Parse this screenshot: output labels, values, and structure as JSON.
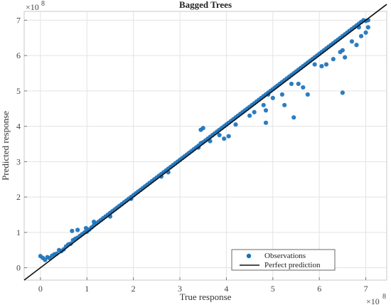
{
  "chart_data": {
    "type": "scatter",
    "title": "Bagged Trees",
    "xlabel": "True response",
    "ylabel": "Predicted response",
    "x_multiplier_label": "×10",
    "x_multiplier_exp": "8",
    "y_multiplier_label": "×10",
    "y_multiplier_exp": "8",
    "xlim": [
      -0.35,
      7.45
    ],
    "ylim": [
      -0.35,
      7.25
    ],
    "x_ticks": [
      "0",
      "1",
      "2",
      "3",
      "4",
      "5",
      "6",
      "7"
    ],
    "y_ticks": [
      "0",
      "1",
      "2",
      "3",
      "4",
      "5",
      "6",
      "7"
    ],
    "grid": true,
    "legend_position": "bottom-right",
    "colors": {
      "observations": "#1a72bb",
      "perfect_prediction": "#111111",
      "grid": "#e3e3e3",
      "axes": "#c8c8c8"
    },
    "series": [
      {
        "name": "Observations",
        "kind": "scatter",
        "points": [
          [
            0.0,
            0.33
          ],
          [
            0.05,
            0.28
          ],
          [
            0.1,
            0.22
          ],
          [
            0.15,
            0.3
          ],
          [
            0.2,
            0.27
          ],
          [
            0.25,
            0.34
          ],
          [
            0.3,
            0.38
          ],
          [
            0.35,
            0.4
          ],
          [
            0.4,
            0.5
          ],
          [
            0.45,
            0.47
          ],
          [
            0.5,
            0.52
          ],
          [
            0.55,
            0.6
          ],
          [
            0.6,
            0.66
          ],
          [
            0.65,
            0.68
          ],
          [
            0.7,
            0.78
          ],
          [
            0.75,
            0.82
          ],
          [
            0.8,
            0.85
          ],
          [
            0.85,
            0.9
          ],
          [
            0.9,
            0.95
          ],
          [
            0.95,
            1.0
          ],
          [
            0.68,
            1.04
          ],
          [
            0.8,
            1.07
          ],
          [
            0.98,
            1.12
          ],
          [
            1.0,
            1.02
          ],
          [
            1.05,
            1.08
          ],
          [
            1.1,
            1.14
          ],
          [
            1.15,
            1.2
          ],
          [
            1.2,
            1.25
          ],
          [
            1.25,
            1.3
          ],
          [
            1.3,
            1.35
          ],
          [
            1.35,
            1.4
          ],
          [
            1.4,
            1.45
          ],
          [
            1.45,
            1.5
          ],
          [
            1.5,
            1.55
          ],
          [
            1.55,
            1.6
          ],
          [
            1.6,
            1.65
          ],
          [
            1.65,
            1.7
          ],
          [
            1.7,
            1.75
          ],
          [
            1.75,
            1.8
          ],
          [
            1.8,
            1.85
          ],
          [
            1.85,
            1.9
          ],
          [
            1.9,
            1.95
          ],
          [
            1.95,
            2.0
          ],
          [
            2.0,
            2.05
          ],
          [
            2.05,
            2.1
          ],
          [
            2.1,
            2.15
          ],
          [
            2.15,
            2.2
          ],
          [
            2.2,
            2.25
          ],
          [
            2.25,
            2.3
          ],
          [
            2.3,
            2.35
          ],
          [
            2.35,
            2.4
          ],
          [
            2.4,
            2.45
          ],
          [
            2.45,
            2.5
          ],
          [
            2.5,
            2.55
          ],
          [
            2.55,
            2.6
          ],
          [
            2.6,
            2.65
          ],
          [
            2.65,
            2.7
          ],
          [
            2.7,
            2.75
          ],
          [
            2.75,
            2.8
          ],
          [
            2.8,
            2.85
          ],
          [
            2.85,
            2.9
          ],
          [
            2.9,
            2.95
          ],
          [
            2.95,
            3.0
          ],
          [
            3.0,
            3.05
          ],
          [
            3.05,
            3.1
          ],
          [
            3.1,
            3.15
          ],
          [
            3.15,
            3.2
          ],
          [
            3.2,
            3.25
          ],
          [
            3.25,
            3.3
          ],
          [
            3.3,
            3.35
          ],
          [
            3.35,
            3.4
          ],
          [
            3.4,
            3.45
          ],
          [
            3.45,
            3.52
          ],
          [
            3.5,
            3.55
          ],
          [
            3.55,
            3.6
          ],
          [
            3.6,
            3.65
          ],
          [
            3.65,
            3.7
          ],
          [
            3.7,
            3.75
          ],
          [
            3.75,
            3.8
          ],
          [
            3.8,
            3.85
          ],
          [
            3.85,
            3.9
          ],
          [
            3.9,
            3.95
          ],
          [
            3.95,
            4.0
          ],
          [
            4.0,
            4.05
          ],
          [
            4.05,
            4.1
          ],
          [
            4.1,
            4.15
          ],
          [
            4.15,
            4.2
          ],
          [
            4.2,
            4.25
          ],
          [
            4.25,
            4.3
          ],
          [
            4.3,
            4.35
          ],
          [
            4.35,
            4.4
          ],
          [
            4.4,
            4.45
          ],
          [
            4.45,
            4.5
          ],
          [
            4.5,
            4.55
          ],
          [
            4.55,
            4.6
          ],
          [
            4.6,
            4.65
          ],
          [
            4.65,
            4.7
          ],
          [
            4.7,
            4.75
          ],
          [
            4.75,
            4.8
          ],
          [
            4.8,
            4.85
          ],
          [
            4.85,
            4.9
          ],
          [
            4.9,
            4.95
          ],
          [
            4.95,
            5.0
          ],
          [
            5.0,
            5.05
          ],
          [
            5.05,
            5.1
          ],
          [
            5.1,
            5.15
          ],
          [
            5.15,
            5.2
          ],
          [
            5.2,
            5.25
          ],
          [
            5.25,
            5.3
          ],
          [
            5.3,
            5.35
          ],
          [
            5.35,
            5.4
          ],
          [
            5.4,
            5.45
          ],
          [
            5.45,
            5.5
          ],
          [
            5.5,
            5.55
          ],
          [
            5.55,
            5.6
          ],
          [
            5.6,
            5.65
          ],
          [
            5.65,
            5.7
          ],
          [
            5.7,
            5.75
          ],
          [
            5.75,
            5.8
          ],
          [
            5.8,
            5.85
          ],
          [
            5.85,
            5.9
          ],
          [
            5.9,
            5.95
          ],
          [
            5.95,
            6.0
          ],
          [
            6.0,
            6.05
          ],
          [
            6.05,
            6.1
          ],
          [
            6.1,
            6.15
          ],
          [
            6.15,
            6.2
          ],
          [
            6.2,
            6.25
          ],
          [
            6.25,
            6.3
          ],
          [
            6.3,
            6.35
          ],
          [
            6.35,
            6.4
          ],
          [
            6.4,
            6.45
          ],
          [
            6.45,
            6.5
          ],
          [
            6.5,
            6.55
          ],
          [
            6.55,
            6.6
          ],
          [
            6.6,
            6.65
          ],
          [
            6.65,
            6.7
          ],
          [
            6.7,
            6.75
          ],
          [
            6.75,
            6.8
          ],
          [
            6.8,
            6.85
          ],
          [
            6.85,
            6.9
          ],
          [
            6.9,
            6.95
          ],
          [
            6.95,
            7.0
          ],
          [
            7.0,
            6.98
          ],
          [
            7.05,
            7.0
          ],
          [
            1.15,
            1.3
          ],
          [
            1.5,
            1.45
          ],
          [
            1.95,
            1.95
          ],
          [
            2.6,
            2.58
          ],
          [
            2.75,
            2.7
          ],
          [
            3.4,
            3.4
          ],
          [
            3.45,
            3.9
          ],
          [
            3.5,
            3.95
          ],
          [
            3.65,
            3.58
          ],
          [
            3.85,
            3.75
          ],
          [
            3.95,
            3.65
          ],
          [
            4.05,
            3.72
          ],
          [
            4.2,
            4.05
          ],
          [
            4.5,
            4.3
          ],
          [
            4.6,
            4.4
          ],
          [
            4.8,
            4.6
          ],
          [
            4.85,
            4.45
          ],
          [
            4.9,
            4.9
          ],
          [
            4.85,
            4.1
          ],
          [
            5.0,
            4.8
          ],
          [
            5.2,
            4.9
          ],
          [
            5.25,
            4.6
          ],
          [
            5.4,
            5.2
          ],
          [
            5.45,
            4.25
          ],
          [
            5.55,
            5.2
          ],
          [
            5.65,
            5.1
          ],
          [
            5.75,
            4.9
          ],
          [
            5.9,
            5.75
          ],
          [
            6.05,
            5.7
          ],
          [
            6.15,
            5.75
          ],
          [
            6.3,
            5.9
          ],
          [
            6.45,
            6.1
          ],
          [
            6.5,
            6.15
          ],
          [
            6.55,
            5.95
          ],
          [
            6.5,
            4.95
          ],
          [
            6.7,
            6.4
          ],
          [
            6.8,
            6.3
          ],
          [
            6.9,
            6.55
          ],
          [
            7.0,
            6.65
          ],
          [
            6.85,
            6.8
          ],
          [
            7.05,
            6.8
          ]
        ]
      },
      {
        "name": "Perfect prediction",
        "kind": "line",
        "x": [
          -0.35,
          7.45
        ],
        "y": [
          -0.35,
          7.45
        ]
      }
    ]
  }
}
